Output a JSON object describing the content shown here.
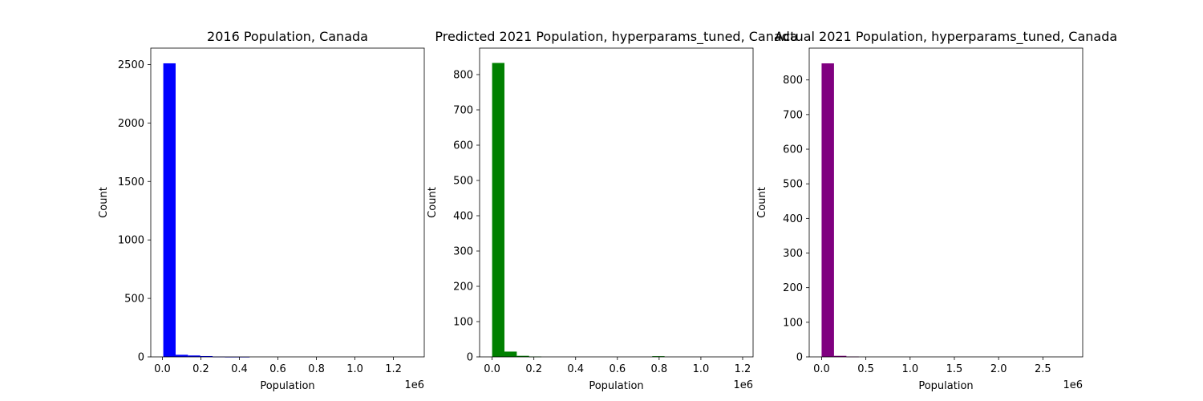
{
  "chart_data": [
    {
      "type": "bar",
      "title": "2016 Population, Canada",
      "xlabel": "Population",
      "ylabel": "Count",
      "x_offset_label": "1e6",
      "color": "#0000ff",
      "xlim": [
        -60000,
        1360000
      ],
      "ylim": [
        0,
        2640
      ],
      "xticks": [
        0,
        200000,
        400000,
        600000,
        800000,
        1000000,
        1200000
      ],
      "xtick_labels": [
        "0.0",
        "0.2",
        "0.4",
        "0.6",
        "0.8",
        "1.0",
        "1.2"
      ],
      "yticks": [
        0,
        500,
        1000,
        1500,
        2000,
        2500
      ],
      "ytick_labels": [
        "0",
        "500",
        "1000",
        "1500",
        "2000",
        "2500"
      ],
      "bin_edges": [
        5000,
        69000,
        133000,
        197000,
        261000,
        325000,
        389000,
        453000,
        517000,
        581000,
        645000,
        709000,
        773000,
        837000,
        901000,
        965000,
        1029000,
        1093000,
        1157000,
        1221000,
        1285000
      ],
      "counts": [
        2510,
        18,
        12,
        7,
        2,
        1,
        1,
        0,
        0,
        0,
        0,
        0,
        0,
        0,
        0,
        0,
        0,
        0,
        0,
        0
      ]
    },
    {
      "type": "bar",
      "title": "Predicted 2021 Population, hyperparams_tuned, Canada",
      "xlabel": "Population",
      "ylabel": "Count",
      "x_offset_label": "1e6",
      "color": "#008000",
      "xlim": [
        -60000,
        1250000
      ],
      "ylim": [
        0,
        875
      ],
      "xticks": [
        0,
        200000,
        400000,
        600000,
        800000,
        1000000,
        1200000
      ],
      "xtick_labels": [
        "0.0",
        "0.2",
        "0.4",
        "0.6",
        "0.8",
        "1.0",
        "1.2"
      ],
      "yticks": [
        0,
        100,
        200,
        300,
        400,
        500,
        600,
        700,
        800
      ],
      "ytick_labels": [
        "0",
        "100",
        "200",
        "300",
        "400",
        "500",
        "600",
        "700",
        "800"
      ],
      "bin_edges": [
        0,
        59000,
        118000,
        177000,
        236000,
        295000,
        354000,
        413000,
        472000,
        531000,
        590000,
        649000,
        708000,
        767000,
        826000,
        885000,
        944000,
        1003000,
        1062000,
        1121000,
        1180000
      ],
      "counts": [
        833,
        15,
        3,
        1,
        0,
        0,
        0,
        0,
        0,
        0,
        0,
        0,
        0,
        2,
        0,
        0,
        0,
        0,
        0,
        0
      ]
    },
    {
      "type": "bar",
      "title": "Actual 2021 Population, hyperparams_tuned, Canada",
      "xlabel": "Population",
      "ylabel": "Count",
      "x_offset_label": "1e6",
      "color": "#800080",
      "xlim": [
        -140000,
        2950000
      ],
      "ylim": [
        0,
        892
      ],
      "xticks": [
        0,
        500000,
        1000000,
        1500000,
        2000000,
        2500000
      ],
      "xtick_labels": [
        "0.0",
        "0.5",
        "1.0",
        "1.5",
        "2.0",
        "2.5"
      ],
      "yticks": [
        0,
        100,
        200,
        300,
        400,
        500,
        600,
        700,
        800
      ],
      "ytick_labels": [
        "0",
        "100",
        "200",
        "300",
        "400",
        "500",
        "600",
        "700",
        "800"
      ],
      "bin_edges": [
        0,
        140000,
        280000,
        420000,
        560000,
        700000,
        840000,
        980000,
        1120000,
        1260000,
        1400000,
        1540000,
        1680000,
        1820000,
        1960000,
        2100000,
        2240000,
        2380000,
        2520000,
        2660000,
        2800000
      ],
      "counts": [
        848,
        3,
        1,
        0,
        0,
        0,
        0,
        0,
        0,
        0,
        0,
        0,
        0,
        0,
        0,
        0,
        0,
        0,
        0,
        0
      ]
    }
  ]
}
